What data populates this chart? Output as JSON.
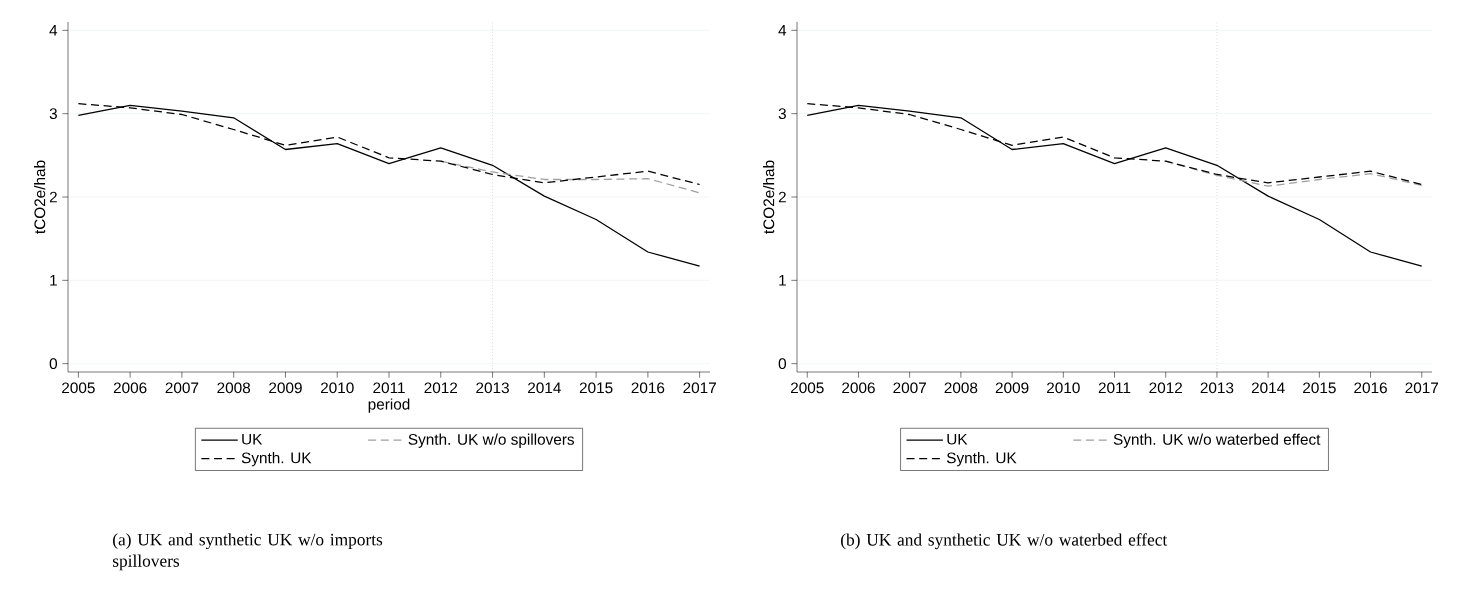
{
  "chart_data": [
    {
      "type": "line",
      "x": [
        2005,
        2006,
        2007,
        2008,
        2009,
        2010,
        2011,
        2012,
        2013,
        2014,
        2015,
        2016,
        2017
      ],
      "xlim": [
        2004.8,
        2017.2
      ],
      "xticks": [
        2005,
        2006,
        2007,
        2008,
        2009,
        2010,
        2011,
        2012,
        2013,
        2014,
        2015,
        2016,
        2017
      ],
      "ylim": [
        -0.1,
        4.1
      ],
      "yticks": [
        0,
        1,
        2,
        3,
        4
      ],
      "xlabel": "period",
      "ylabel": "tCO2e/hab",
      "grid": "y",
      "legend": "bottom",
      "series": [
        {
          "name": "UK",
          "color": "#000000",
          "line_style": "solid",
          "values": [
            2.98,
            3.1,
            3.03,
            2.95,
            2.57,
            2.64,
            2.4,
            2.59,
            2.38,
            2.01,
            1.73,
            1.34,
            1.17
          ]
        },
        {
          "name": "Synth. UK w/o spillovers",
          "color": "#a0a0a0",
          "line_style": "dashed",
          "values": [
            null,
            null,
            null,
            null,
            null,
            null,
            null,
            2.43,
            2.3,
            2.21,
            2.21,
            2.22,
            2.05
          ]
        },
        {
          "name": "Synth. UK",
          "color": "#000000",
          "line_style": "dashed",
          "values": [
            3.12,
            3.07,
            2.99,
            2.81,
            2.62,
            2.72,
            2.47,
            2.43,
            2.27,
            2.17,
            2.24,
            2.31,
            2.15
          ]
        }
      ],
      "ref_lines": [
        {
          "axis": "x",
          "value": 2013,
          "color": "#808080",
          "line_style": "dotted"
        }
      ],
      "annotations": [
        "(a) UK and synthetic UK w/o imports spillovers"
      ]
    },
    {
      "type": "line",
      "x": [
        2005,
        2006,
        2007,
        2008,
        2009,
        2010,
        2011,
        2012,
        2013,
        2014,
        2015,
        2016,
        2017
      ],
      "xlim": [
        2004.8,
        2017.2
      ],
      "xticks": [
        2005,
        2006,
        2007,
        2008,
        2009,
        2010,
        2011,
        2012,
        2013,
        2014,
        2015,
        2016,
        2017
      ],
      "ylim": [
        -0.1,
        4.1
      ],
      "yticks": [
        0,
        1,
        2,
        3,
        4
      ],
      "ylabel": "tCO2e/hab",
      "grid": "y",
      "legend": "bottom",
      "series": [
        {
          "name": "UK",
          "color": "#000000",
          "line_style": "solid",
          "values": [
            2.98,
            3.1,
            3.03,
            2.95,
            2.57,
            2.64,
            2.4,
            2.59,
            2.38,
            2.01,
            1.73,
            1.34,
            1.17
          ]
        },
        {
          "name": "Synth. UK w/o waterbed effect",
          "color": "#a0a0a0",
          "line_style": "dashed",
          "values": [
            null,
            null,
            null,
            null,
            null,
            null,
            null,
            2.43,
            2.26,
            2.13,
            2.21,
            2.28,
            2.14
          ]
        },
        {
          "name": "Synth. UK",
          "color": "#000000",
          "line_style": "dashed",
          "values": [
            3.12,
            3.07,
            2.99,
            2.81,
            2.62,
            2.72,
            2.47,
            2.43,
            2.27,
            2.17,
            2.24,
            2.31,
            2.15
          ]
        }
      ],
      "ref_lines": [
        {
          "axis": "x",
          "value": 2013,
          "color": "#808080",
          "line_style": "dotted"
        }
      ],
      "annotations": [
        "(b) UK and synthetic UK w/o waterbed effect"
      ]
    }
  ]
}
